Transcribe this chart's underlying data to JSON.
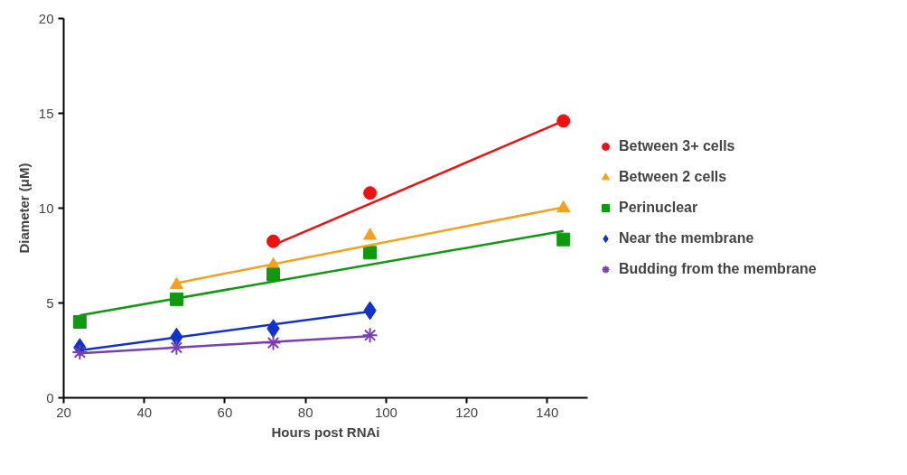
{
  "chart_data": {
    "type": "scatter",
    "xlabel": "Hours post RNAi",
    "ylabel": "Diameter (μM)",
    "xlim": [
      20,
      150
    ],
    "xticks": [
      20,
      40,
      60,
      80,
      100,
      120,
      140
    ],
    "ylim": [
      0,
      20
    ],
    "yticks": [
      0,
      5,
      10,
      15,
      20
    ],
    "grid": false,
    "legend": "right",
    "series": [
      {
        "name": "Between 3+ cells",
        "color": "#ee1111",
        "marker": "circle",
        "x": [
          72,
          96,
          144
        ],
        "values": [
          8.25,
          10.8,
          14.6
        ]
      },
      {
        "name": "Between 2 cells",
        "color": "#f5a01e",
        "marker": "triangle",
        "x": [
          48,
          72,
          96,
          144
        ],
        "values": [
          5.95,
          7.0,
          8.55,
          10.0
        ]
      },
      {
        "name": "Perinuclear",
        "color": "#109910",
        "marker": "square",
        "x": [
          24,
          48,
          72,
          96,
          144
        ],
        "values": [
          4.0,
          5.2,
          6.5,
          7.65,
          8.35
        ]
      },
      {
        "name": "Near the membrane",
        "color": "#1133cc",
        "marker": "diamond",
        "x": [
          24,
          48,
          72,
          96
        ],
        "values": [
          2.65,
          3.2,
          3.65,
          4.6
        ]
      },
      {
        "name": "Budding from the membrane",
        "color": "#7a3fb0",
        "marker": "cross",
        "x": [
          24,
          48,
          72,
          96
        ],
        "values": [
          2.4,
          2.65,
          2.9,
          3.3
        ]
      },
      {
        "type": "line",
        "color": "#ee1111",
        "x": [
          72,
          144
        ],
        "values": [
          8.05,
          14.6
        ]
      },
      {
        "type": "line",
        "color": "#f5a01e",
        "x": [
          48,
          144
        ],
        "values": [
          6.05,
          10.05
        ]
      },
      {
        "type": "line",
        "color": "#109910",
        "x": [
          24,
          144
        ],
        "values": [
          4.35,
          8.8
        ]
      },
      {
        "type": "line",
        "color": "#1133cc",
        "x": [
          24,
          96
        ],
        "values": [
          2.5,
          4.55
        ]
      },
      {
        "type": "line",
        "color": "#7a3fb0",
        "x": [
          24,
          96
        ],
        "values": [
          2.35,
          3.25
        ]
      }
    ]
  }
}
